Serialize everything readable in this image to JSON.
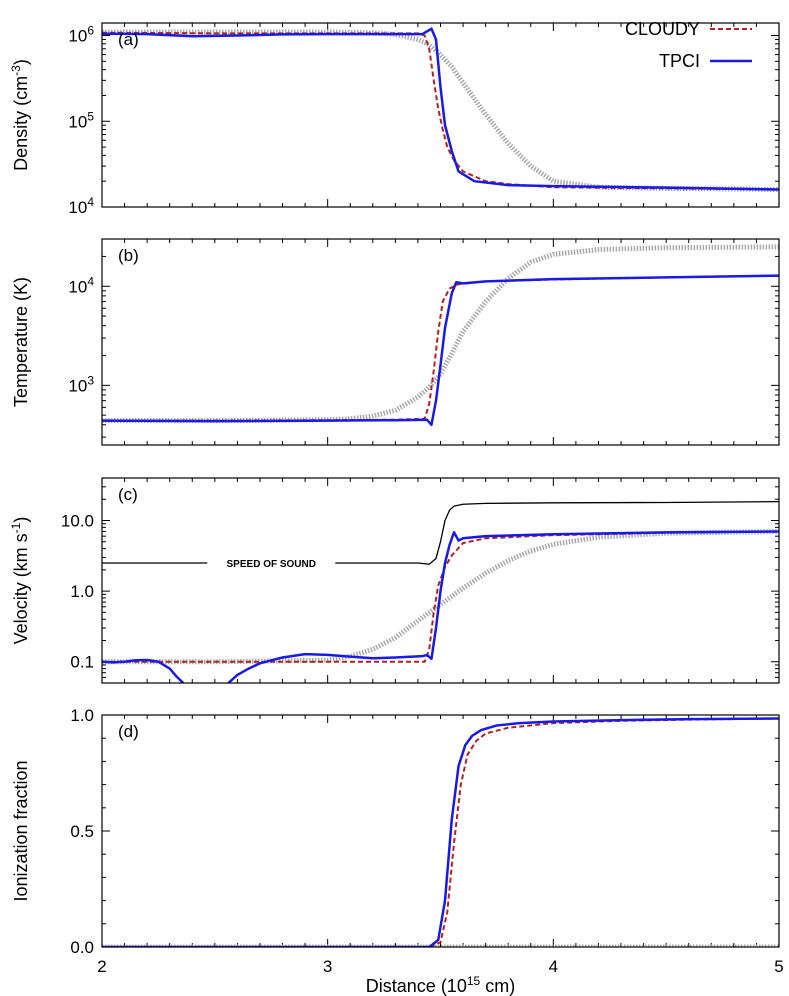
{
  "chart_data": [
    {
      "type": "line",
      "panel": "(a)",
      "ylabel_base": "Density (cm",
      "ylabel_exp": "-3",
      "ylabel_close": ")",
      "yscale": "log",
      "ylim": [
        10000,
        1400000
      ],
      "yticks": [
        {
          "value": 10000,
          "base": "10",
          "exp": "4"
        },
        {
          "value": 100000,
          "base": "10",
          "exp": "5"
        },
        {
          "value": 1000000,
          "base": "10",
          "exp": "6"
        }
      ],
      "xlim": [
        2,
        5
      ],
      "legend": {
        "placement": "top-right",
        "entries": [
          {
            "name": "CLOUDY",
            "color": "#b22222",
            "dash": "5,3"
          },
          {
            "name": "TPCI",
            "color": "#1a1ae6",
            "dash": ""
          }
        ]
      },
      "series": [
        {
          "name": "gray",
          "color": "#aaaaaa",
          "style": "gray",
          "x": [
            2.0,
            2.5,
            3.0,
            3.2,
            3.3,
            3.4,
            3.45,
            3.5,
            3.55,
            3.6,
            3.7,
            3.8,
            3.9,
            4.0,
            4.2,
            4.5,
            5.0
          ],
          "y": [
            1100000,
            1100000,
            1100000,
            1080000,
            1030000,
            900000,
            780000,
            600000,
            430000,
            280000,
            120000,
            55000,
            30000,
            20000,
            17000,
            16500,
            16000
          ]
        },
        {
          "name": "CLOUDY",
          "color": "#b22222",
          "style": "dash",
          "x": [
            2.0,
            2.5,
            3.0,
            3.2,
            3.4,
            3.43,
            3.45,
            3.47,
            3.49,
            3.51,
            3.53,
            3.56,
            3.6,
            3.7,
            3.8,
            4.0,
            4.5,
            5.0
          ],
          "y": [
            1080000,
            1060000,
            1060000,
            1060000,
            1060000,
            1000000,
            700000,
            300000,
            140000,
            80000,
            50000,
            35000,
            26000,
            20000,
            18500,
            17000,
            16500,
            16000
          ]
        },
        {
          "name": "TPCI",
          "color": "#1a1ae6",
          "style": "solid",
          "x": [
            2.0,
            2.2,
            2.4,
            2.6,
            2.8,
            3.0,
            3.2,
            3.42,
            3.46,
            3.48,
            3.5,
            3.52,
            3.55,
            3.58,
            3.65,
            3.8,
            4.0,
            4.5,
            5.0
          ],
          "y": [
            1050000,
            1040000,
            980000,
            1000000,
            1030000,
            1040000,
            1040000,
            1040000,
            1200000,
            900000,
            250000,
            90000,
            45000,
            26000,
            20000,
            18000,
            17500,
            16800,
            16000
          ]
        }
      ]
    },
    {
      "type": "line",
      "panel": "(b)",
      "ylabel_base": "Temperature (K)",
      "ylabel_exp": "",
      "ylabel_close": "",
      "yscale": "log",
      "ylim": [
        250,
        30000
      ],
      "yticks": [
        {
          "value": 1000,
          "base": "10",
          "exp": "3"
        },
        {
          "value": 10000,
          "base": "10",
          "exp": "4"
        }
      ],
      "xlim": [
        2,
        5
      ],
      "series": [
        {
          "name": "gray",
          "color": "#aaaaaa",
          "style": "gray",
          "x": [
            2.0,
            2.5,
            3.0,
            3.1,
            3.2,
            3.3,
            3.4,
            3.45,
            3.5,
            3.55,
            3.6,
            3.7,
            3.8,
            3.9,
            4.0,
            4.2,
            4.5,
            5.0
          ],
          "y": [
            440,
            440,
            450,
            460,
            490,
            560,
            760,
            960,
            1300,
            2100,
            3500,
            7000,
            12000,
            17500,
            21000,
            23500,
            24500,
            25000
          ]
        },
        {
          "name": "CLOUDY",
          "color": "#b22222",
          "style": "dash",
          "x": [
            2.0,
            2.5,
            3.0,
            3.3,
            3.43,
            3.45,
            3.47,
            3.49,
            3.51,
            3.54,
            3.58,
            3.7,
            4.0,
            4.5,
            5.0
          ],
          "y": [
            440,
            440,
            445,
            450,
            460,
            650,
            1400,
            3500,
            7000,
            9500,
            10500,
            11200,
            11700,
            12300,
            12800
          ]
        },
        {
          "name": "TPCI",
          "color": "#1a1ae6",
          "style": "solid",
          "x": [
            2.0,
            2.5,
            3.0,
            3.3,
            3.44,
            3.46,
            3.48,
            3.5,
            3.52,
            3.55,
            3.57,
            3.6,
            3.7,
            4.0,
            4.5,
            5.0
          ],
          "y": [
            440,
            435,
            440,
            445,
            450,
            400,
            700,
            1600,
            3800,
            8500,
            11000,
            10700,
            11200,
            11800,
            12300,
            12800
          ]
        }
      ]
    },
    {
      "type": "line",
      "panel": "(c)",
      "ylabel_base": "Velocity (km s",
      "ylabel_exp": "-1",
      "ylabel_close": ")",
      "yscale": "log",
      "ylim": [
        0.05,
        40
      ],
      "yticks": [
        {
          "value": 0.1,
          "base": "0.1",
          "exp": ""
        },
        {
          "value": 1,
          "base": "1.0",
          "exp": ""
        },
        {
          "value": 10,
          "base": "10.0",
          "exp": ""
        }
      ],
      "xlim": [
        2,
        5
      ],
      "annotation": {
        "text": "SPEED OF SOUND",
        "x": 2.75,
        "y": 2.5
      },
      "series": [
        {
          "name": "speed-of-sound",
          "color": "#000000",
          "style": "thin",
          "x": [
            2.0,
            2.3,
            2.5,
            2.6,
            3.0,
            3.4,
            3.45,
            3.48,
            3.5,
            3.52,
            3.54,
            3.56,
            3.6,
            3.7,
            4.0,
            4.5,
            5.0
          ],
          "y": [
            2.5,
            2.5,
            2.5,
            2.5,
            2.5,
            2.5,
            2.4,
            2.9,
            5.0,
            10.0,
            14.0,
            16.0,
            17.0,
            17.5,
            17.8,
            18.0,
            18.5
          ]
        },
        {
          "name": "gray",
          "color": "#aaaaaa",
          "style": "gray",
          "x": [
            2.0,
            2.5,
            3.0,
            3.1,
            3.2,
            3.3,
            3.4,
            3.5,
            3.6,
            3.7,
            3.8,
            3.9,
            4.0,
            4.2,
            4.5,
            5.0
          ],
          "y": [
            0.1,
            0.1,
            0.105,
            0.12,
            0.15,
            0.22,
            0.38,
            0.65,
            1.1,
            1.8,
            2.7,
            3.7,
            4.6,
            5.8,
            6.6,
            7.0
          ]
        },
        {
          "name": "CLOUDY",
          "color": "#b22222",
          "style": "dash",
          "x": [
            2.0,
            2.5,
            3.0,
            3.3,
            3.43,
            3.45,
            3.47,
            3.49,
            3.52,
            3.55,
            3.6,
            3.7,
            4.0,
            4.5,
            5.0
          ],
          "y": [
            0.1,
            0.1,
            0.1,
            0.1,
            0.1,
            0.15,
            0.5,
            1.2,
            2.2,
            3.2,
            4.8,
            5.6,
            6.2,
            6.7,
            7.0
          ]
        },
        {
          "name": "TPCI",
          "color": "#1a1ae6",
          "style": "solid",
          "x": [
            2.0,
            2.05,
            2.1,
            2.15,
            2.2,
            2.25,
            2.3,
            2.33,
            2.36
          ],
          "y": [
            0.1,
            0.098,
            0.1,
            0.105,
            0.106,
            0.1,
            0.08,
            0.062,
            0.05
          ]
        },
        {
          "name": "TPCI",
          "color": "#1a1ae6",
          "style": "solid",
          "x": [
            2.56,
            2.6,
            2.65,
            2.7,
            2.8,
            2.9,
            3.0,
            3.1,
            3.2,
            3.3,
            3.42,
            3.44,
            3.46,
            3.48,
            3.5,
            3.52,
            3.54,
            3.56,
            3.58,
            3.6,
            3.7,
            4.0,
            4.5,
            5.0
          ],
          "y": [
            0.05,
            0.065,
            0.08,
            0.095,
            0.115,
            0.128,
            0.125,
            0.118,
            0.112,
            0.115,
            0.12,
            0.125,
            0.11,
            0.3,
            1.0,
            2.5,
            4.5,
            6.8,
            5.2,
            5.6,
            6.0,
            6.4,
            6.8,
            7.0
          ]
        }
      ]
    },
    {
      "type": "line",
      "panel": "(d)",
      "ylabel_base": "Ionization fraction",
      "ylabel_exp": "",
      "ylabel_close": "",
      "yscale": "linear",
      "ylim": [
        0,
        1
      ],
      "yticks": [
        {
          "value": 0,
          "base": "0.0",
          "exp": ""
        },
        {
          "value": 0.5,
          "base": "0.5",
          "exp": ""
        },
        {
          "value": 1,
          "base": "1.0",
          "exp": ""
        }
      ],
      "xlim": [
        2,
        5
      ],
      "xlabel_base": "Distance (10",
      "xlabel_exp": "15",
      "xlabel_close": " cm)",
      "xticks": [
        {
          "value": 2,
          "label": "2"
        },
        {
          "value": 3,
          "label": "3"
        },
        {
          "value": 4,
          "label": "4"
        },
        {
          "value": 5,
          "label": "5"
        }
      ],
      "series": [
        {
          "name": "gray",
          "color": "#aaaaaa",
          "style": "gray",
          "x": [
            2.0,
            3.0,
            4.0,
            5.0
          ],
          "y": [
            0.0,
            0.0,
            0.0,
            0.0
          ]
        },
        {
          "name": "CLOUDY",
          "color": "#b22222",
          "style": "dash",
          "x": [
            2.0,
            3.0,
            3.45,
            3.5,
            3.53,
            3.56,
            3.59,
            3.62,
            3.66,
            3.7,
            3.8,
            3.9,
            4.0,
            4.3,
            4.6,
            5.0
          ],
          "y": [
            0.0,
            0.0,
            0.0,
            0.02,
            0.15,
            0.45,
            0.7,
            0.83,
            0.89,
            0.92,
            0.945,
            0.955,
            0.965,
            0.975,
            0.98,
            0.985
          ]
        },
        {
          "name": "TPCI",
          "color": "#1a1ae6",
          "style": "solid",
          "x": [
            2.0,
            3.0,
            3.45,
            3.49,
            3.52,
            3.55,
            3.58,
            3.61,
            3.64,
            3.68,
            3.75,
            3.85,
            4.0,
            4.3,
            4.6,
            5.0
          ],
          "y": [
            0.0,
            0.0,
            0.0,
            0.03,
            0.2,
            0.55,
            0.78,
            0.87,
            0.91,
            0.935,
            0.955,
            0.965,
            0.972,
            0.978,
            0.982,
            0.985
          ]
        }
      ]
    }
  ]
}
